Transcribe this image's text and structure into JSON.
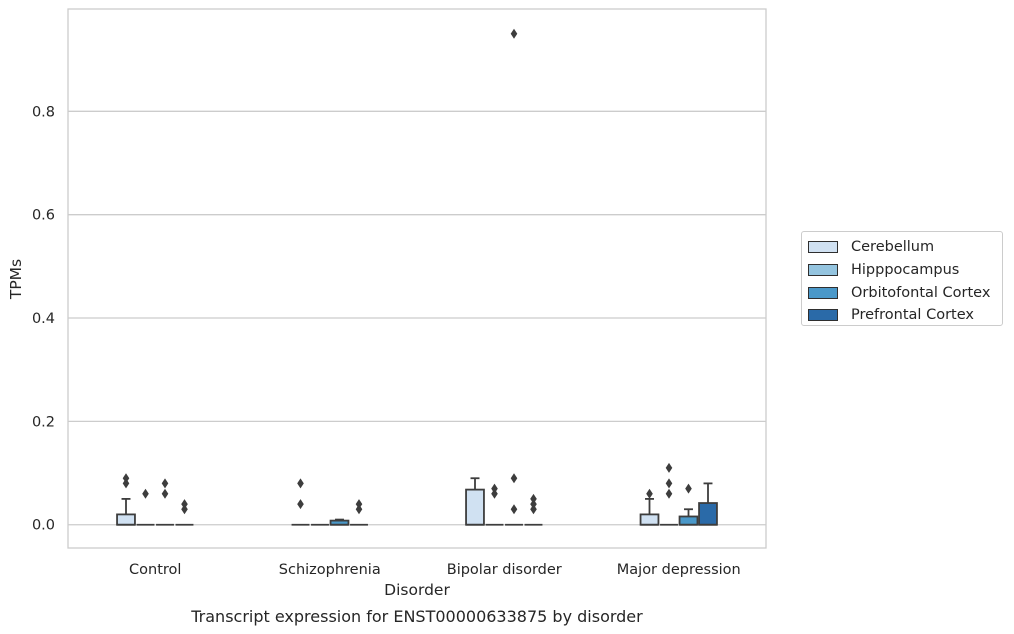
{
  "chart_data": {
    "type": "box",
    "title": "",
    "caption": "Transcript expression for ENST00000633875 by disorder",
    "xlabel": "Disorder",
    "ylabel": "TPMs",
    "ylim": [
      -0.045,
      0.998
    ],
    "yticks": [
      0.0,
      0.2,
      0.4,
      0.6,
      0.8
    ],
    "ytick_labels": [
      "0.0",
      "0.2",
      "0.4",
      "0.6",
      "0.8"
    ],
    "grid": "horizontal",
    "legend_position": "right",
    "categories": [
      "Control",
      "Schizophrenia",
      "Bipolar disorder",
      "Major depression"
    ],
    "series": [
      {
        "name": "Cerebellum",
        "color": "#d0e1f2",
        "boxes": [
          {
            "q1": 0.0,
            "median": 0.0,
            "q3": 0.02,
            "whislo": 0.0,
            "whishi": 0.05,
            "fliers": [
              0.08,
              0.09
            ]
          },
          {
            "q1": 0.0,
            "median": 0.0,
            "q3": 0.0,
            "whislo": 0.0,
            "whishi": 0.0,
            "fliers": [
              0.04,
              0.08
            ]
          },
          {
            "q1": 0.0,
            "median": 0.0,
            "q3": 0.068,
            "whislo": 0.0,
            "whishi": 0.09,
            "fliers": []
          },
          {
            "q1": 0.0,
            "median": 0.0,
            "q3": 0.02,
            "whislo": 0.0,
            "whishi": 0.05,
            "fliers": [
              0.06
            ]
          }
        ]
      },
      {
        "name": "Hipppocampus",
        "color": "#94c4df",
        "boxes": [
          {
            "q1": 0.0,
            "median": 0.0,
            "q3": 0.0,
            "whislo": 0.0,
            "whishi": 0.0,
            "fliers": [
              0.06
            ]
          },
          {
            "q1": 0.0,
            "median": 0.0,
            "q3": 0.0,
            "whislo": 0.0,
            "whishi": 0.0,
            "fliers": []
          },
          {
            "q1": 0.0,
            "median": 0.0,
            "q3": 0.0,
            "whislo": 0.0,
            "whishi": 0.0,
            "fliers": [
              0.06,
              0.07
            ]
          },
          {
            "q1": 0.0,
            "median": 0.0,
            "q3": 0.0,
            "whislo": 0.0,
            "whishi": 0.0,
            "fliers": [
              0.06,
              0.08,
              0.11
            ]
          }
        ]
      },
      {
        "name": "Orbitofontal Cortex",
        "color": "#4a98c9",
        "boxes": [
          {
            "q1": 0.0,
            "median": 0.0,
            "q3": 0.0,
            "whislo": 0.0,
            "whishi": 0.0,
            "fliers": [
              0.06,
              0.08
            ]
          },
          {
            "q1": 0.0,
            "median": 0.0,
            "q3": 0.008,
            "whislo": 0.0,
            "whishi": 0.01,
            "fliers": []
          },
          {
            "q1": 0.0,
            "median": 0.0,
            "q3": 0.0,
            "whislo": 0.0,
            "whishi": 0.0,
            "fliers": [
              0.03,
              0.09,
              0.95
            ]
          },
          {
            "q1": 0.0,
            "median": 0.0,
            "q3": 0.016,
            "whislo": 0.0,
            "whishi": 0.03,
            "fliers": [
              0.07
            ]
          }
        ]
      },
      {
        "name": "Prefrontal Cortex",
        "color": "#2a6aa8",
        "boxes": [
          {
            "q1": 0.0,
            "median": 0.0,
            "q3": 0.0,
            "whislo": 0.0,
            "whishi": 0.0,
            "fliers": [
              0.03,
              0.04
            ]
          },
          {
            "q1": 0.0,
            "median": 0.0,
            "q3": 0.0,
            "whislo": 0.0,
            "whishi": 0.0,
            "fliers": [
              0.03,
              0.04
            ]
          },
          {
            "q1": 0.0,
            "median": 0.0,
            "q3": 0.0,
            "whislo": 0.0,
            "whishi": 0.0,
            "fliers": [
              0.03,
              0.04,
              0.05
            ]
          },
          {
            "q1": 0.0,
            "median": 0.0,
            "q3": 0.042,
            "whislo": 0.0,
            "whishi": 0.08,
            "fliers": []
          }
        ]
      }
    ]
  }
}
